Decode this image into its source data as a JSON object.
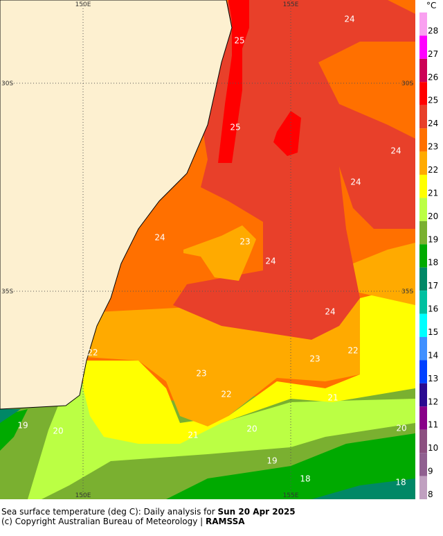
{
  "map": {
    "title": "Sea surface temperature",
    "lon_labels": [
      "150E",
      "155E"
    ],
    "lat_labels": [
      "30S",
      "35S"
    ],
    "contour_labels": [
      24,
      25,
      25,
      24,
      24,
      23,
      24,
      24,
      24,
      22,
      23,
      22,
      23,
      22,
      21,
      19,
      20,
      21,
      20,
      20,
      19,
      18,
      18
    ]
  },
  "legend": {
    "unit": "°C",
    "ticks": [
      28,
      27,
      26,
      25,
      24,
      23,
      22,
      21,
      20,
      19,
      18,
      17,
      16,
      15,
      14,
      13,
      12,
      11,
      10,
      9,
      8
    ],
    "colors": [
      "#f9a0f0",
      "#ff00ff",
      "#cc0055",
      "#ff0000",
      "#e8402a",
      "#ff7000",
      "#ffaa00",
      "#ffff00",
      "#bbff44",
      "#7ab030",
      "#00aa00",
      "#008866",
      "#00c0a0",
      "#00ffff",
      "#4090ff",
      "#0040ff",
      "#2a0a90",
      "#880088",
      "#8c5080",
      "#906090",
      "#c0a0c0"
    ]
  },
  "caption": {
    "line1": "Sea surface temperature (deg C): Daily analysis for ",
    "date": "Sun 20 Apr 2025",
    "line2": "(c) Copyright Australian Bureau of Meteorology | ",
    "org": "RAMSSA"
  }
}
